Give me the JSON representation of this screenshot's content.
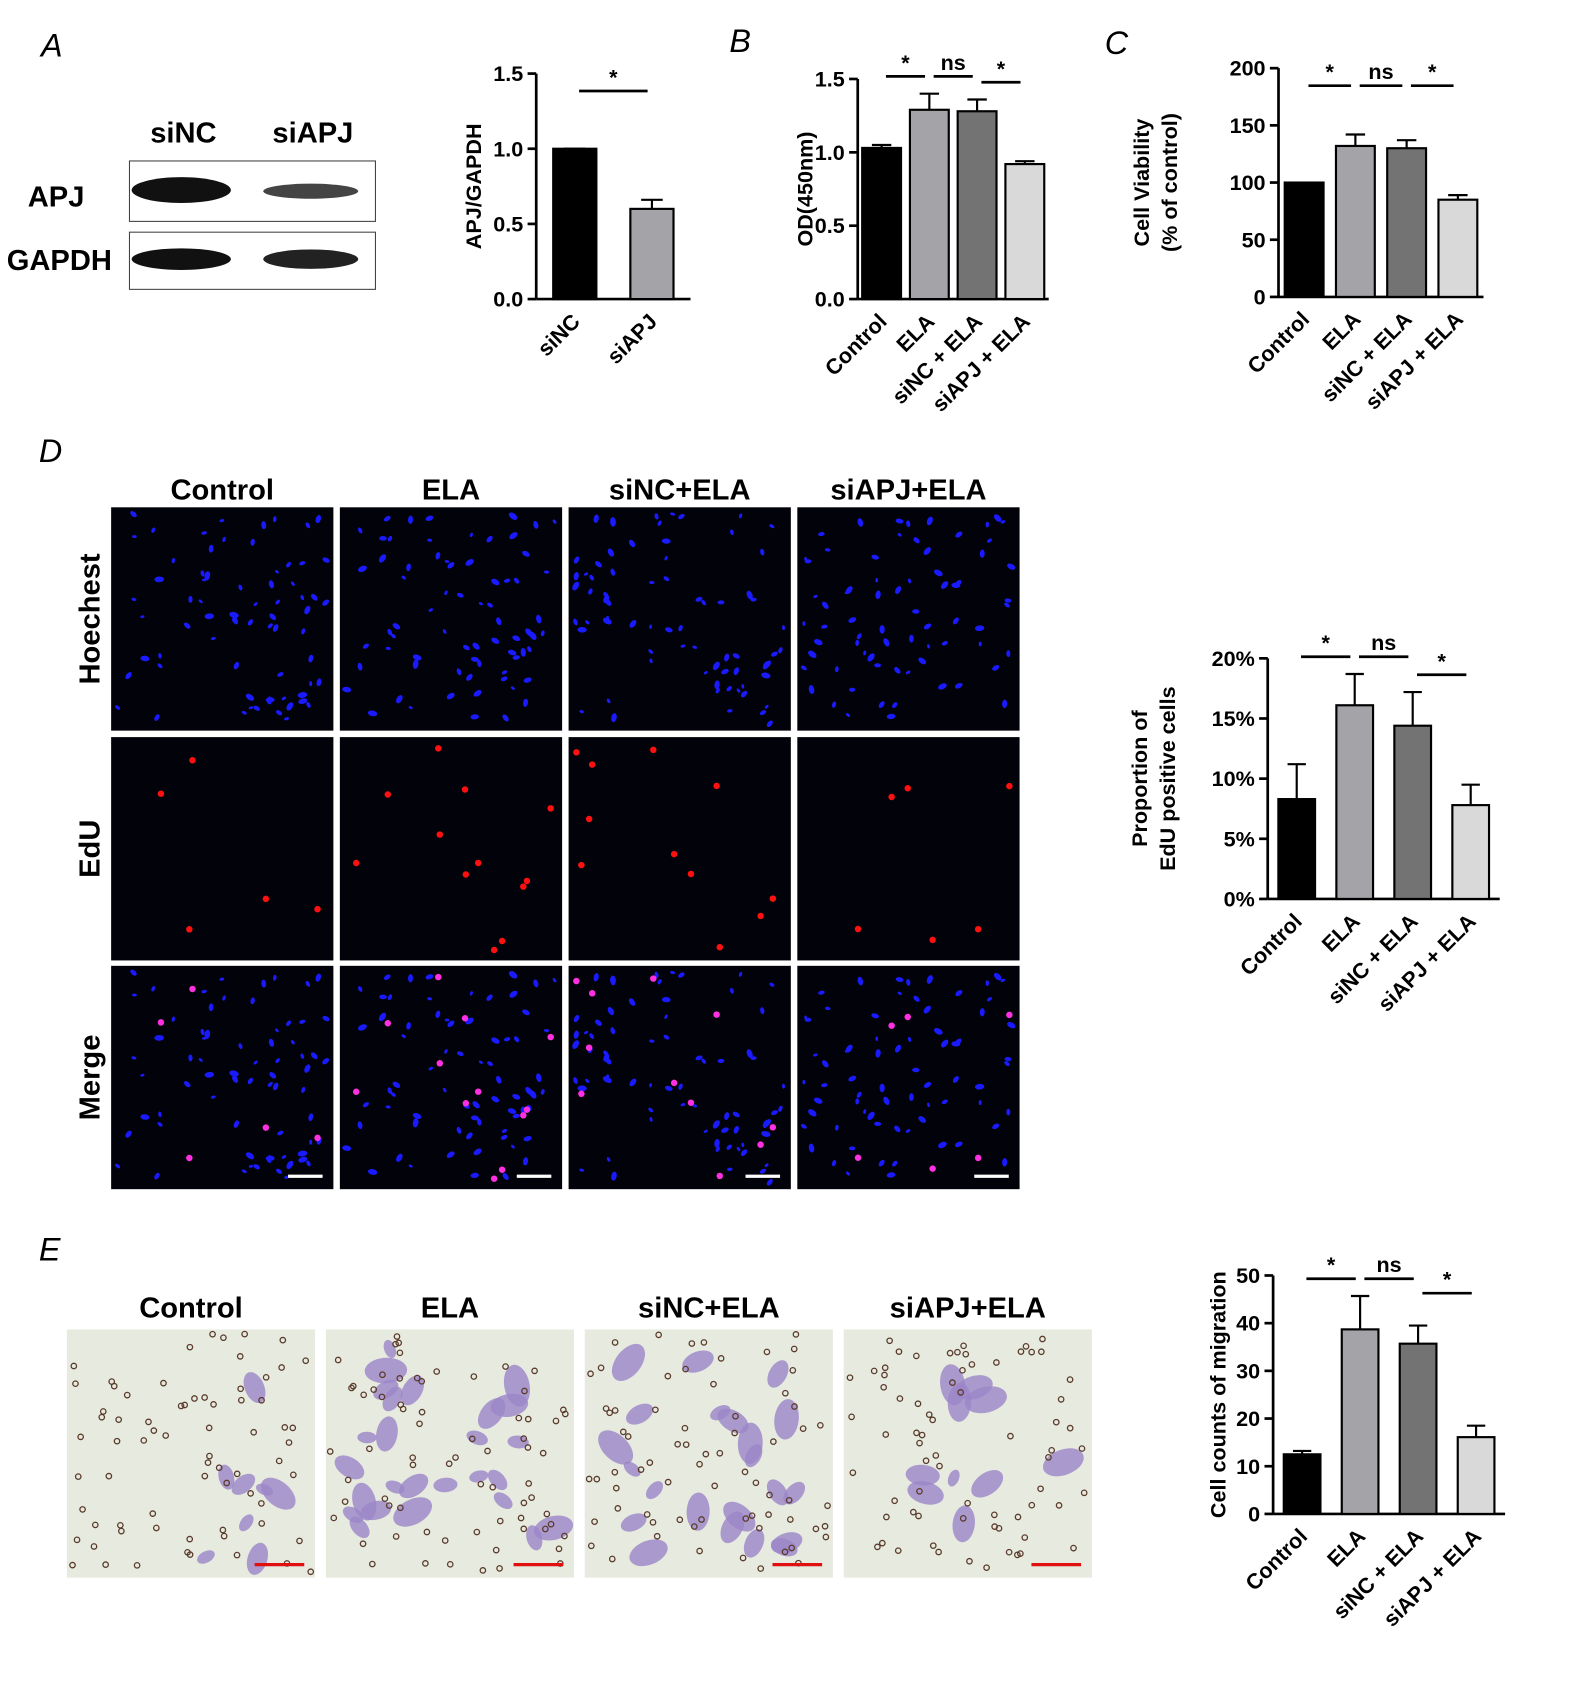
{
  "panel_labels": [
    "A",
    "B",
    "C",
    "D",
    "E"
  ],
  "western_blot": {
    "lanes": [
      "siNC",
      "siAPJ"
    ],
    "rows": [
      "APJ",
      "GAPDH"
    ]
  },
  "edu_images": {
    "columns": [
      "Control",
      "ELA",
      "siNC+ELA",
      "siAPJ+ELA"
    ],
    "rows": [
      "Hoechest",
      "EdU",
      "Merge"
    ]
  },
  "transwell_images": {
    "columns": [
      "Control",
      "ELA",
      "siNC+ELA",
      "siAPJ+ELA"
    ]
  },
  "chart_data": [
    {
      "type": "bar",
      "ylabel": [
        "APJ/GAPDH"
      ],
      "categories": [
        "siNC",
        "siAPJ"
      ],
      "values": [
        1.0,
        0.6
      ],
      "errors": [
        0,
        0.06
      ],
      "colors": [
        "#000000",
        "#a3a3a8"
      ],
      "ylim": [
        0,
        1.5
      ],
      "yticks": [
        {
          "value": 0,
          "label": "0.0"
        },
        0.5,
        {
          "value": 1,
          "label": "1.0"
        },
        1.5
      ],
      "comparisons": [
        {
          "pair": [
            0,
            1
          ],
          "label": "*"
        }
      ]
    },
    {
      "type": "bar",
      "ylabel": [
        "OD(450nm)"
      ],
      "categories": [
        "Control",
        "ELA",
        "siNC + ELA",
        "siAPJ + ELA"
      ],
      "values": [
        1.03,
        1.29,
        1.28,
        0.92
      ],
      "errors": [
        0.02,
        0.11,
        0.08,
        0.02
      ],
      "colors": [
        "#000000",
        "#a3a3a8",
        "#737373",
        "#d9d9d9"
      ],
      "ylim": [
        0,
        1.5
      ],
      "yticks": [
        {
          "value": 0,
          "label": "0.0"
        },
        0.5,
        {
          "value": 1,
          "label": "1.0"
        },
        1.5
      ],
      "comparisons": [
        {
          "pair": [
            0,
            1
          ],
          "label": "*"
        },
        {
          "pair": [
            1,
            2
          ],
          "label": "ns"
        },
        {
          "pair": [
            2,
            3
          ],
          "label": "*"
        }
      ]
    },
    {
      "type": "bar",
      "ylabel": [
        "Cell Viability",
        "(% of control)"
      ],
      "categories": [
        "Control",
        "ELA",
        "siNC + ELA",
        "siAPJ + ELA"
      ],
      "values": [
        100,
        132,
        130,
        85
      ],
      "errors": [
        0,
        10,
        7,
        4
      ],
      "colors": [
        "#000000",
        "#a3a3a8",
        "#737373",
        "#d9d9d9"
      ],
      "ylim": [
        0,
        200
      ],
      "yticks": [
        0,
        50,
        100,
        150,
        200
      ],
      "comparisons": [
        {
          "pair": [
            0,
            1
          ],
          "label": "*"
        },
        {
          "pair": [
            1,
            2
          ],
          "label": "ns"
        },
        {
          "pair": [
            2,
            3
          ],
          "label": "*"
        }
      ]
    },
    {
      "type": "bar",
      "ylabel": [
        "Proportion of",
        "EdU positive cells"
      ],
      "categories": [
        "Control",
        "ELA",
        "siNC + ELA",
        "siAPJ + ELA"
      ],
      "values": [
        8.3,
        16.1,
        14.4,
        7.8
      ],
      "errors": [
        2.9,
        2.6,
        2.8,
        1.7
      ],
      "colors": [
        "#000000",
        "#a3a3a8",
        "#737373",
        "#d9d9d9"
      ],
      "ylim": [
        0,
        20
      ],
      "yticks": [
        {
          "value": 0,
          "label": "0%"
        },
        {
          "value": 5,
          "label": "5%"
        },
        {
          "value": 10,
          "label": "10%"
        },
        {
          "value": 15,
          "label": "15%"
        },
        {
          "value": 20,
          "label": "20%"
        }
      ],
      "comparisons": [
        {
          "pair": [
            0,
            1
          ],
          "label": "*"
        },
        {
          "pair": [
            1,
            2
          ],
          "label": "ns"
        },
        {
          "pair": [
            2,
            3
          ],
          "label": "*"
        }
      ]
    },
    {
      "type": "bar",
      "ylabel": [
        "Cell counts of migration"
      ],
      "categories": [
        "Control",
        "ELA",
        "siNC + ELA",
        "siAPJ + ELA"
      ],
      "values": [
        12.5,
        38.7,
        35.7,
        16.1
      ],
      "errors": [
        0.7,
        7,
        3.8,
        2.4
      ],
      "colors": [
        "#000000",
        "#a3a3a8",
        "#737373",
        "#d9d9d9"
      ],
      "ylim": [
        0,
        50
      ],
      "yticks": [
        0,
        10,
        20,
        30,
        40,
        50
      ],
      "comparisons": [
        {
          "pair": [
            0,
            1
          ],
          "label": "*"
        },
        {
          "pair": [
            1,
            2
          ],
          "label": "ns"
        },
        {
          "pair": [
            2,
            3
          ],
          "label": "*"
        }
      ]
    }
  ]
}
